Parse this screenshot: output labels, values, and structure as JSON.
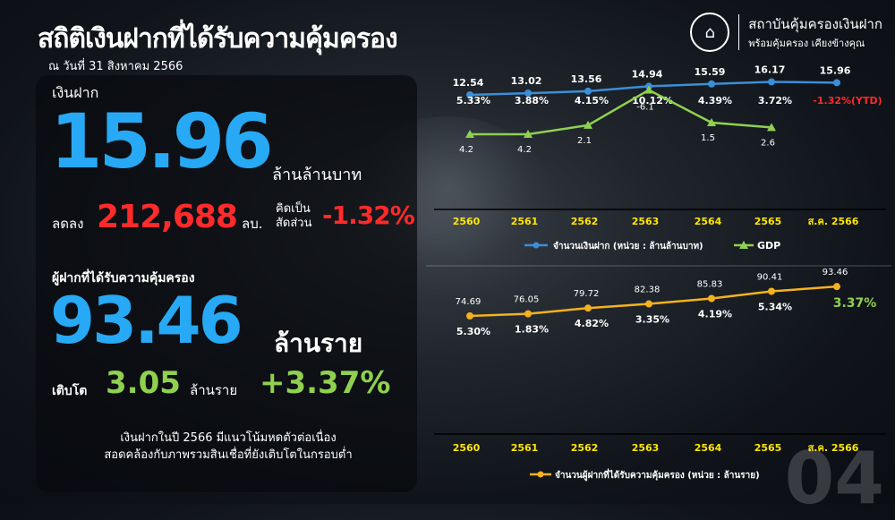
{
  "header": {
    "title": "สถิติเงินฝากที่ได้รับความคุ้มครอง",
    "as_of": "ณ วันที่ 31 สิงหาคม 2566",
    "brand_line1": "สถาบันคุ้มครองเงินฝาก",
    "brand_line2": "พร้อมคุ้มครอง เคียงข้างคุณ"
  },
  "deposits": {
    "label": "เงินฝาก",
    "value": "15.96",
    "unit": "ล้านล้านบาท",
    "change_label": "ลดลง",
    "change_value": "212,688",
    "change_unit": "ลบ.",
    "ratio_label_1": "คิดเป็น",
    "ratio_label_2": "สัดส่วน",
    "ratio_value": "-1.32%"
  },
  "depositors": {
    "label": "ผู้ฝากที่ได้รับความคุ้มครอง",
    "value": "93.46",
    "unit": "ล้านราย",
    "growth_label": "เติบโต",
    "growth_value": "3.05",
    "growth_unit": "ล้านราย",
    "growth_pct": "+3.37%"
  },
  "note": {
    "line1": "เงินฝากในปี 2566 มีแนวโน้มหดตัวต่อเนื่อง",
    "line2": "สอดคล้องกับภาพรวมสินเชื่อที่ยังเติบโตในกรอบต่ำ"
  },
  "page_number": "04",
  "colors": {
    "blue": "#3a8fd8",
    "green": "#8fd14f",
    "orange": "#f5b21e",
    "red": "#ff2a2a",
    "yellow": "#ffe600"
  },
  "chart_data": [
    {
      "type": "line",
      "categories": [
        "2560",
        "2561",
        "2562",
        "2563",
        "2564",
        "2565",
        "ส.ค. 2566"
      ],
      "series": [
        {
          "name": "จำนวนเงินฝาก (หน่วย : ล้านล้านบาท)",
          "values": [
            12.54,
            13.02,
            13.56,
            14.94,
            15.59,
            16.17,
            15.96
          ],
          "growth_labels": [
            "5.33%",
            "3.88%",
            "4.15%",
            "10.12%",
            "4.39%",
            "3.72%",
            "-1.32%(YTD)"
          ]
        },
        {
          "name": "GDP",
          "values": [
            4.2,
            4.2,
            2.1,
            -6.1,
            1.5,
            2.6,
            null
          ]
        }
      ],
      "legend_position": "bottom"
    },
    {
      "type": "line",
      "categories": [
        "2560",
        "2561",
        "2562",
        "2563",
        "2564",
        "2565",
        "ส.ค. 2566"
      ],
      "series": [
        {
          "name": "จำนวนผู้ฝากที่ได้รับความคุ้มครอง (หน่วย : ล้านราย)",
          "values": [
            74.69,
            76.05,
            79.72,
            82.38,
            85.83,
            90.41,
            93.46
          ],
          "growth_labels": [
            "5.30%",
            "1.83%",
            "4.82%",
            "3.35%",
            "4.19%",
            "5.34%",
            "3.37%"
          ]
        }
      ],
      "legend_position": "bottom"
    }
  ]
}
